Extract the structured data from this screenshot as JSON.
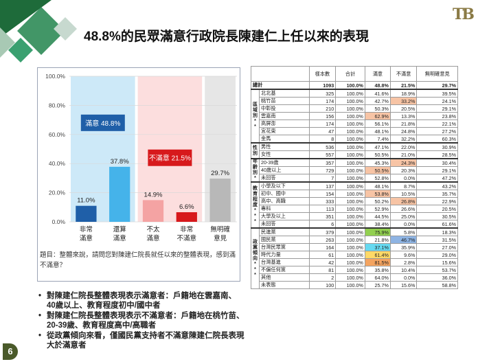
{
  "title": "48.8%的民眾滿意行政院長陳建仁上任以來的表現",
  "logo": "TB",
  "page_number": "6",
  "chart_data": {
    "type": "bar",
    "categories": [
      "非常\n滿意",
      "還算\n滿意",
      "不太\n滿意",
      "非常\n不滿意",
      "無明確\n意見"
    ],
    "category_lines": [
      [
        "非常",
        "滿意"
      ],
      [
        "還算",
        "滿意"
      ],
      [
        "不太",
        "滿意"
      ],
      [
        "非常",
        "不滿意"
      ],
      [
        "無明確",
        "意見"
      ]
    ],
    "values": [
      11.0,
      37.8,
      14.9,
      6.6,
      29.7
    ],
    "value_labels": [
      "11.0%",
      "37.8%",
      "14.9%",
      "6.6%",
      "29.7%"
    ],
    "bar_colors": [
      "#1f5fa8",
      "#45b3ea",
      "#f4a3a3",
      "#d7191c",
      "#b8b8b8"
    ],
    "ylim": [
      0,
      100
    ],
    "yticks": [
      "0.0%",
      "20.0%",
      "40.0%",
      "60.0%",
      "80.0%",
      "100.0%"
    ],
    "groups": [
      {
        "label": "滿意 48.8%",
        "color": "#1f5fa8",
        "bg": "#cde9f8",
        "start": 0,
        "end": 1
      },
      {
        "label": "不滿意 21.5%",
        "color": "#d7191c",
        "bg": "#fcdede",
        "start": 2,
        "end": 3
      },
      {
        "label": "",
        "color": "#d9d9d9",
        "bg": "#e6e6e6",
        "start": 4,
        "end": 4
      }
    ]
  },
  "question_note": "題目：整體來說，請問您對陳建仁院長就任以來的整體表現，感到滿不滿意？",
  "bullets": [
    "對陳建仁院長整體表現表示滿意者：戶籍地在雲嘉南、40歲以上、教育程度初中/國中者",
    "對陳建仁院長整體表現表示不滿意者：戶籍地在桃竹苗、20-39歲、教育程度高中/高職者",
    "從政黨傾向來看，僅國民黨支持者不滿意陳建仁院長表現大於滿意者"
  ],
  "table": {
    "headers": [
      "",
      "",
      "樣本數",
      "合計",
      "滿意",
      "不滿意",
      "無明確意見"
    ],
    "total": {
      "label": "總計",
      "cells": [
        "1093",
        "100.0%",
        "48.8%",
        "21.5%",
        "29.7%"
      ]
    },
    "groups": [
      {
        "name": "區域別**",
        "rows": [
          {
            "label": "北北基",
            "cells": [
              "325",
              "100.0%",
              "41.6%",
              "18.9%",
              "39.5%"
            ],
            "hl": [
              null,
              null,
              null,
              null,
              null
            ]
          },
          {
            "label": "桃竹苗",
            "cells": [
              "174",
              "100.0%",
              "42.7%",
              "33.2%",
              "24.1%"
            ],
            "hl": [
              null,
              null,
              null,
              "salmon",
              null
            ]
          },
          {
            "label": "中彰投",
            "cells": [
              "210",
              "100.0%",
              "50.3%",
              "20.5%",
              "29.1%"
            ],
            "hl": [
              null,
              null,
              null,
              null,
              null
            ]
          },
          {
            "label": "雲嘉南",
            "cells": [
              "156",
              "100.0%",
              "62.9%",
              "13.3%",
              "23.8%"
            ],
            "hl": [
              null,
              null,
              "salmon",
              null,
              null
            ]
          },
          {
            "label": "高屏澎",
            "cells": [
              "174",
              "100.0%",
              "56.1%",
              "21.8%",
              "22.1%"
            ],
            "hl": [
              null,
              null,
              null,
              null,
              null
            ]
          },
          {
            "label": "宜花東",
            "cells": [
              "47",
              "100.0%",
              "48.1%",
              "24.8%",
              "27.2%"
            ],
            "hl": [
              null,
              null,
              null,
              null,
              null
            ]
          },
          {
            "label": "金馬",
            "cells": [
              "8",
              "100.0%",
              "7.4%",
              "32.2%",
              "60.3%"
            ],
            "hl": [
              null,
              null,
              null,
              null,
              null
            ]
          }
        ]
      },
      {
        "name": "性別",
        "rows": [
          {
            "label": "男性",
            "cells": [
              "536",
              "100.0%",
              "47.1%",
              "22.0%",
              "30.9%"
            ],
            "hl": [
              null,
              null,
              null,
              null,
              null
            ]
          },
          {
            "label": "女性",
            "cells": [
              "557",
              "100.0%",
              "50.5%",
              "21.0%",
              "28.5%"
            ],
            "hl": [
              null,
              null,
              null,
              null,
              null
            ]
          }
        ]
      },
      {
        "name": "年齡別*",
        "rows": [
          {
            "label": "20-39歲",
            "cells": [
              "357",
              "100.0%",
              "45.3%",
              "24.3%",
              "30.4%"
            ],
            "hl": [
              null,
              null,
              null,
              "salmon",
              null
            ]
          },
          {
            "label": "40歲以上",
            "cells": [
              "729",
              "100.0%",
              "50.5%",
              "20.3%",
              "29.1%"
            ],
            "hl": [
              null,
              null,
              "salmon",
              null,
              null
            ]
          },
          {
            "label": "未回答",
            "cells": [
              "7",
              "100.0%",
              "52.8%",
              "0.0%",
              "47.2%"
            ],
            "hl": [
              null,
              null,
              null,
              null,
              null
            ]
          }
        ]
      },
      {
        "name": "教育程度***",
        "rows": [
          {
            "label": "小學及以下",
            "cells": [
              "137",
              "100.0%",
              "48.1%",
              "8.7%",
              "43.2%"
            ],
            "hl": [
              null,
              null,
              null,
              null,
              null
            ]
          },
          {
            "label": "初中、國中",
            "cells": [
              "154",
              "100.0%",
              "53.8%",
              "10.5%",
              "35.7%"
            ],
            "hl": [
              null,
              null,
              "salmon",
              null,
              null
            ]
          },
          {
            "label": "高中、高職",
            "cells": [
              "333",
              "100.0%",
              "50.2%",
              "26.8%",
              "22.9%"
            ],
            "hl": [
              null,
              null,
              null,
              "salmon",
              null
            ]
          },
          {
            "label": "專科",
            "cells": [
              "113",
              "100.0%",
              "52.9%",
              "26.6%",
              "20.5%"
            ],
            "hl": [
              null,
              null,
              null,
              null,
              null
            ]
          },
          {
            "label": "大學及以上",
            "cells": [
              "351",
              "100.0%",
              "44.5%",
              "25.0%",
              "30.5%"
            ],
            "hl": [
              null,
              null,
              null,
              null,
              null
            ]
          },
          {
            "label": "未回答",
            "cells": [
              "6",
              "100.0%",
              "38.4%",
              "0.0%",
              "61.6%"
            ],
            "hl": [
              null,
              null,
              null,
              null,
              null
            ]
          }
        ]
      },
      {
        "name": "政黨傾向***",
        "rows": [
          {
            "label": "民進黨",
            "cells": [
              "379",
              "100.0%",
              "75.9%",
              "5.8%",
              "18.3%"
            ],
            "hl": [
              null,
              null,
              "green",
              null,
              null
            ]
          },
          {
            "label": "國民黨",
            "cells": [
              "263",
              "100.0%",
              "21.8%",
              "46.7%",
              "31.5%"
            ],
            "hl": [
              null,
              null,
              null,
              "blue",
              null
            ]
          },
          {
            "label": "台灣民眾黨",
            "cells": [
              "164",
              "100.0%",
              "37.1%",
              "35.9%",
              "27.0%"
            ],
            "hl": [
              null,
              null,
              "cyan",
              null,
              null
            ]
          },
          {
            "label": "時代力量",
            "cells": [
              "61",
              "100.0%",
              "61.4%",
              "9.6%",
              "29.0%"
            ],
            "hl": [
              null,
              null,
              "yellow",
              null,
              null
            ]
          },
          {
            "label": "台灣基進",
            "cells": [
              "42",
              "100.0%",
              "81.5%",
              "2.8%",
              "15.6%"
            ],
            "hl": [
              null,
              null,
              "orange",
              null,
              null
            ]
          },
          {
            "label": "不偏任何黨",
            "cells": [
              "81",
              "100.0%",
              "35.8%",
              "10.4%",
              "53.7%"
            ],
            "hl": [
              null,
              null,
              null,
              null,
              null
            ]
          },
          {
            "label": "其他",
            "cells": [
              "2",
              "100.0%",
              "64.0%",
              "0.0%",
              "36.0%"
            ],
            "hl": [
              null,
              null,
              null,
              null,
              null
            ]
          },
          {
            "label": "未表態",
            "cells": [
              "100",
              "100.0%",
              "25.7%",
              "15.6%",
              "58.8%"
            ],
            "hl": [
              null,
              null,
              null,
              null,
              null
            ]
          }
        ]
      }
    ]
  }
}
